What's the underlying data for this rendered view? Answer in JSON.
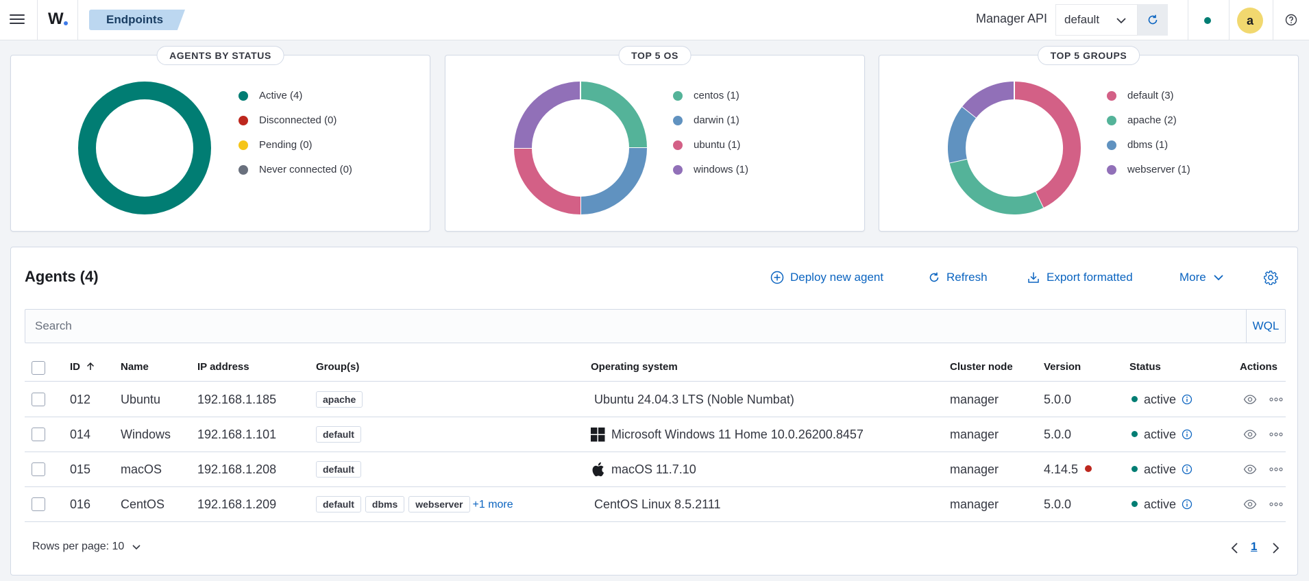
{
  "header": {
    "logo_text": "W",
    "breadcrumb": "Endpoints",
    "manager_label": "Manager API",
    "api_selected": "default",
    "avatar_initial": "a"
  },
  "cards": {
    "status": {
      "title": "AGENTS BY STATUS",
      "legend": [
        "Active (4)",
        "Disconnected (0)",
        "Pending (0)",
        "Never connected (0)"
      ],
      "colors": [
        "#017d73",
        "#bd271e",
        "#f5c518",
        "#69707d"
      ],
      "values": [
        4,
        0,
        0,
        0
      ]
    },
    "os": {
      "title": "TOP 5 OS",
      "legend": [
        "centos (1)",
        "darwin (1)",
        "ubuntu (1)",
        "windows (1)"
      ],
      "colors": [
        "#54b399",
        "#6092c0",
        "#d36086",
        "#9170b8"
      ],
      "values": [
        1,
        1,
        1,
        1
      ]
    },
    "groups": {
      "title": "TOP 5 GROUPS",
      "legend": [
        "default (3)",
        "apache (2)",
        "dbms (1)",
        "webserver (1)"
      ],
      "colors": [
        "#d36086",
        "#54b399",
        "#6092c0",
        "#9170b8"
      ],
      "values": [
        3,
        2,
        1,
        1
      ]
    }
  },
  "agents": {
    "title": "Agents (4)",
    "actions": {
      "deploy": "Deploy new agent",
      "refresh": "Refresh",
      "export": "Export formatted",
      "more": "More"
    },
    "search_placeholder": "Search",
    "wql": "WQL",
    "columns": {
      "id": "ID",
      "name": "Name",
      "ip": "IP address",
      "groups": "Group(s)",
      "os": "Operating system",
      "node": "Cluster node",
      "version": "Version",
      "status": "Status",
      "actions": "Actions"
    },
    "rows": [
      {
        "id": "012",
        "name": "Ubuntu",
        "ip": "192.168.1.185",
        "groups": [
          "apache"
        ],
        "more": "",
        "os": "Ubuntu 24.04.3 LTS (Noble Numbat)",
        "os_icon": "",
        "node": "manager",
        "version": "5.0.0",
        "outdated": false,
        "status": "active"
      },
      {
        "id": "014",
        "name": "Windows",
        "ip": "192.168.1.101",
        "groups": [
          "default"
        ],
        "more": "",
        "os": "Microsoft Windows 11 Home 10.0.26200.8457",
        "os_icon": "windows-icon",
        "node": "manager",
        "version": "5.0.0",
        "outdated": false,
        "status": "active"
      },
      {
        "id": "015",
        "name": "macOS",
        "ip": "192.168.1.208",
        "groups": [
          "default"
        ],
        "more": "",
        "os": "macOS 11.7.10",
        "os_icon": "apple-icon",
        "node": "manager",
        "version": "4.14.5",
        "outdated": true,
        "status": "active"
      },
      {
        "id": "016",
        "name": "CentOS",
        "ip": "192.168.1.209",
        "groups": [
          "default",
          "dbms",
          "webserver"
        ],
        "more": "+1 more",
        "os": "CentOS Linux 8.5.2111",
        "os_icon": "",
        "node": "manager",
        "version": "5.0.0",
        "outdated": false,
        "status": "active"
      }
    ],
    "rows_per_page": "Rows per page: 10",
    "current_page": "1"
  }
}
